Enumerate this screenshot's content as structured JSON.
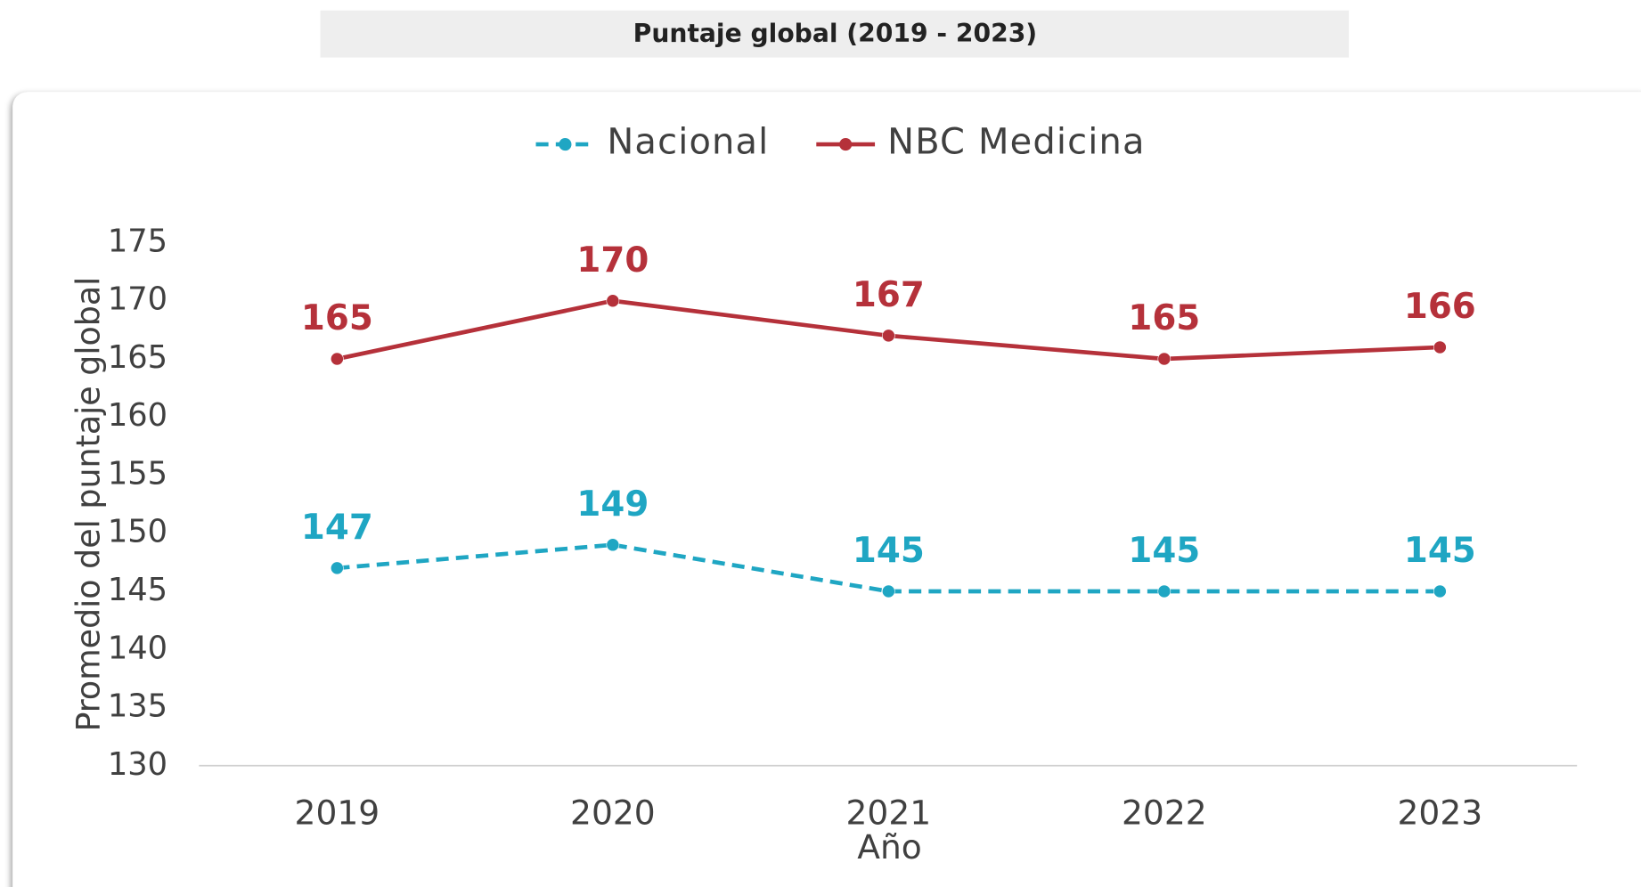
{
  "chart_data": {
    "type": "line",
    "title": "Puntaje global (2019 - 2023)",
    "x_label": "Año",
    "y_label": "Promedio del puntaje global",
    "categories": [
      "2019",
      "2020",
      "2021",
      "2022",
      "2023"
    ],
    "series": [
      {
        "name": "Nacional",
        "color": "#1fa6c3",
        "dashed": true,
        "values": [
          147,
          149,
          145,
          145,
          145
        ]
      },
      {
        "name": "NBC Medicina",
        "color": "#b5313a",
        "dashed": false,
        "values": [
          165,
          170,
          167,
          165,
          166
        ]
      }
    ],
    "ylim": [
      130,
      175
    ],
    "yticks": [
      130,
      135,
      140,
      145,
      150,
      155,
      160,
      165,
      170,
      175
    ],
    "legend": "top"
  }
}
